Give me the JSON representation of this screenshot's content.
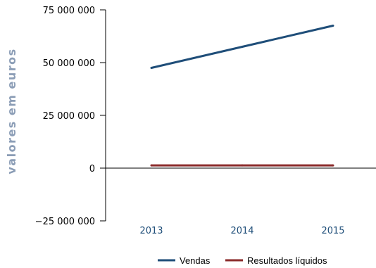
{
  "chart_data": {
    "type": "line",
    "title": "",
    "xlabel": "",
    "ylabel": "valores em euros",
    "categories": [
      "2013",
      "2014",
      "2015"
    ],
    "ylim": [
      -25000000,
      75000000
    ],
    "yticks": [
      -25000000,
      0,
      25000000,
      50000000,
      75000000
    ],
    "ytick_labels": [
      "−25 000 000",
      "0",
      "25 000 000",
      "50 000 000",
      "75 000 000"
    ],
    "grid": false,
    "legend_position": "bottom-right",
    "series": [
      {
        "name": "Vendas",
        "color": "#1f4e79",
        "values": [
          47500000,
          57500000,
          67500000
        ]
      },
      {
        "name": "Resultados líquidos",
        "color": "#8b2b2b",
        "values": [
          1300000,
          1300000,
          1300000
        ]
      }
    ]
  }
}
